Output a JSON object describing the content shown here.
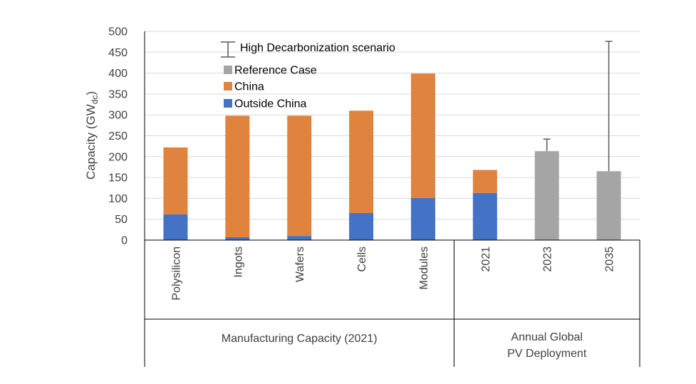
{
  "colors": {
    "outside_china": "#4472C4",
    "china": "#E0833F",
    "reference": "#A5A5A5",
    "gridline": "#D9D9D9",
    "axis": "#000000",
    "errorbar": "#595959"
  },
  "chart_data": {
    "type": "bar",
    "stacked": true,
    "title": "",
    "ylabel_main": "Capacity (GW",
    "ylabel_sub": "dc",
    "ylabel_close": ")",
    "ylim": [
      0,
      500
    ],
    "yticks": [
      "0",
      "50",
      "100",
      "150",
      "200",
      "250",
      "300",
      "350",
      "400",
      "450",
      "500"
    ],
    "grid": true,
    "legend_position": "top-center",
    "categories": [
      "Polysilicon",
      "Ingots",
      "Wafers",
      "Cells",
      "Modules",
      "2021",
      "2023",
      "2035"
    ],
    "series": [
      {
        "name": "Outside China",
        "color_key": "outside_china",
        "values": [
          62,
          7,
          10,
          65,
          101,
          113,
          null,
          null
        ]
      },
      {
        "name": "China",
        "color_key": "china",
        "values": [
          160,
          291,
          288,
          245,
          298,
          55,
          null,
          null
        ]
      },
      {
        "name": "Reference Case",
        "color_key": "reference",
        "values": [
          null,
          null,
          null,
          null,
          null,
          null,
          213,
          165
        ]
      }
    ],
    "error_bars": {
      "name": "High Decarbonization scenario",
      "values": [
        null,
        null,
        null,
        null,
        null,
        null,
        242,
        476
      ]
    },
    "groups": [
      {
        "label": "Manufacturing Capacity (2021)",
        "lines": [
          "Manufacturing Capacity (2021)"
        ],
        "start": 0,
        "end": 4
      },
      {
        "label": "Annual Global PV Deployment",
        "lines": [
          "Annual Global",
          "PV Deployment"
        ],
        "start": 5,
        "end": 7
      }
    ],
    "legend": [
      {
        "label": "High Decarbonization scenario",
        "marker": "errorbar"
      },
      {
        "label": "Reference Case",
        "marker": "square",
        "color_key": "reference"
      },
      {
        "label": "China",
        "marker": "square",
        "color_key": "china"
      },
      {
        "label": "Outside China",
        "marker": "square",
        "color_key": "outside_china"
      }
    ]
  }
}
